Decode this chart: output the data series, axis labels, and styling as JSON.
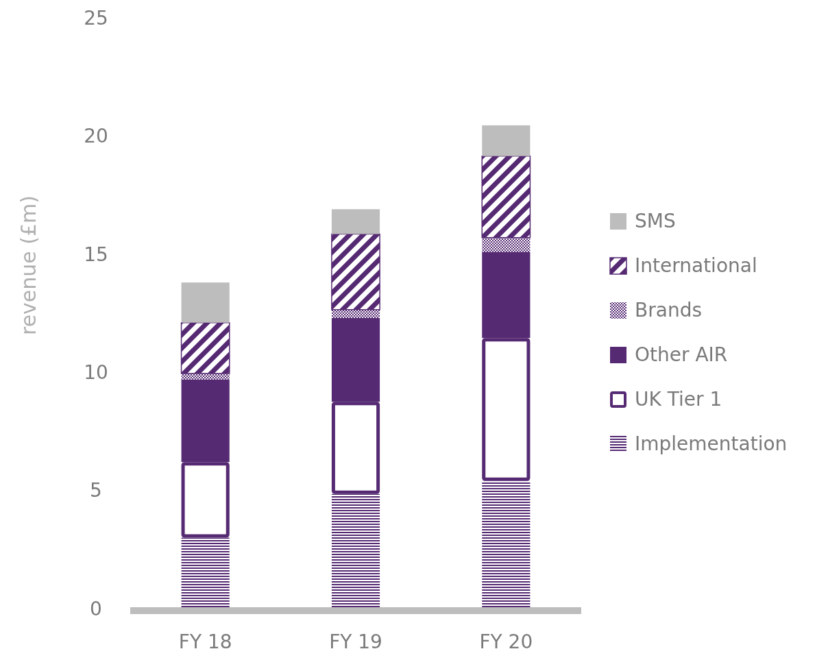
{
  "chart_data": {
    "type": "bar",
    "stacked": true,
    "ylabel": "revenue (£m)",
    "categories": [
      "FY 18",
      "FY 19",
      "FY 20"
    ],
    "series": [
      {
        "name": "Implementation",
        "color": "#552a73",
        "values": [
          3.0,
          4.85,
          5.4
        ]
      },
      {
        "name": "UK Tier 1",
        "color": "#552a73",
        "values": [
          3.2,
          3.9,
          6.05
        ]
      },
      {
        "name": "Other AIR",
        "color": "#552a73",
        "values": [
          3.5,
          3.55,
          3.65
        ]
      },
      {
        "name": "Brands",
        "color": "#552a73",
        "values": [
          0.25,
          0.35,
          0.6
        ]
      },
      {
        "name": "International",
        "color": "#552a73",
        "values": [
          2.15,
          3.2,
          3.45
        ]
      },
      {
        "name": "SMS",
        "color": "#bdbdbd",
        "values": [
          1.7,
          1.05,
          1.3
        ]
      }
    ],
    "ylim": [
      0,
      25
    ],
    "yticks": [
      0,
      5,
      10,
      15,
      20,
      25
    ],
    "grid": false,
    "legend": "right"
  }
}
